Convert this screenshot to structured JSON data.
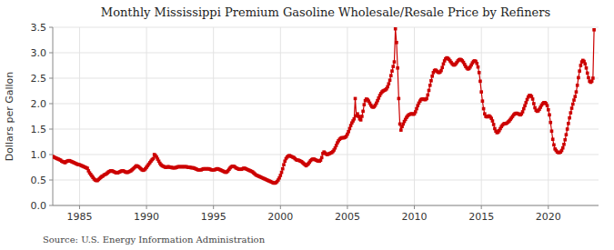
{
  "chart_data": {
    "type": "line",
    "title": "Monthly Mississippi Premium Gasoline Wholesale/Resale Price by Refiners",
    "y_label": "Dollars per Gallon",
    "annotations": [
      "Source: U.S. Energy Information Administration"
    ],
    "color": "#cc0000",
    "marker": "square",
    "grid": true,
    "xlim": [
      1983.0,
      2023.75
    ],
    "xticks": [
      1985,
      1990,
      1995,
      2000,
      2005,
      2010,
      2015,
      2020
    ],
    "ylim": [
      0.0,
      3.5
    ],
    "yticks": [
      {
        "value": 0.0,
        "label": "0.0"
      },
      0.5,
      {
        "value": 1.0,
        "label": "1.0"
      },
      1.5,
      {
        "value": 2.0,
        "label": "2.0"
      },
      2.5,
      {
        "value": 3.0,
        "label": "3.0"
      },
      3.5
    ],
    "x": [
      1983.0,
      1983.083,
      1983.167,
      1983.25,
      1983.333,
      1983.417,
      1983.5,
      1983.583,
      1983.667,
      1983.75,
      1983.833,
      1983.917,
      1984.0,
      1984.083,
      1984.167,
      1984.25,
      1984.333,
      1984.417,
      1984.5,
      1984.583,
      1984.667,
      1984.75,
      1984.833,
      1984.917,
      1985.0,
      1985.083,
      1985.167,
      1985.25,
      1985.333,
      1985.417,
      1985.5,
      1985.583,
      1985.667,
      1985.75,
      1985.833,
      1985.917,
      1986.0,
      1986.083,
      1986.167,
      1986.25,
      1986.333,
      1986.417,
      1986.5,
      1986.583,
      1986.667,
      1986.75,
      1986.833,
      1986.917,
      1987.0,
      1987.083,
      1987.167,
      1987.25,
      1987.333,
      1987.417,
      1987.5,
      1987.583,
      1987.667,
      1987.75,
      1987.833,
      1987.917,
      1988.0,
      1988.083,
      1988.167,
      1988.25,
      1988.333,
      1988.417,
      1988.5,
      1988.583,
      1988.667,
      1988.75,
      1988.833,
      1988.917,
      1989.0,
      1989.083,
      1989.167,
      1989.25,
      1989.333,
      1989.417,
      1989.5,
      1989.583,
      1989.667,
      1989.75,
      1989.833,
      1989.917,
      1990.0,
      1990.083,
      1990.167,
      1990.25,
      1990.333,
      1990.417,
      1990.5,
      1990.583,
      1990.667,
      1990.75,
      1990.833,
      1990.917,
      1991.0,
      1991.083,
      1991.167,
      1991.25,
      1991.333,
      1991.417,
      1991.5,
      1991.583,
      1991.667,
      1991.75,
      1991.833,
      1991.917,
      1992.0,
      1992.083,
      1992.167,
      1992.25,
      1992.333,
      1992.417,
      1992.5,
      1992.583,
      1992.667,
      1992.75,
      1992.833,
      1992.917,
      1993.0,
      1993.083,
      1993.167,
      1993.25,
      1993.333,
      1993.417,
      1993.5,
      1993.583,
      1993.667,
      1993.75,
      1993.833,
      1993.917,
      1994.0,
      1994.083,
      1994.167,
      1994.25,
      1994.333,
      1994.417,
      1994.5,
      1994.583,
      1994.667,
      1994.75,
      1994.833,
      1994.917,
      1995.0,
      1995.083,
      1995.167,
      1995.25,
      1995.333,
      1995.417,
      1995.5,
      1995.583,
      1995.667,
      1995.75,
      1995.833,
      1995.917,
      1996.0,
      1996.083,
      1996.167,
      1996.25,
      1996.333,
      1996.417,
      1996.5,
      1996.583,
      1996.667,
      1996.75,
      1996.833,
      1996.917,
      1997.0,
      1997.083,
      1997.167,
      1997.25,
      1997.333,
      1997.417,
      1997.5,
      1997.583,
      1997.667,
      1997.75,
      1997.833,
      1997.917,
      1998.0,
      1998.083,
      1998.167,
      1998.25,
      1998.333,
      1998.417,
      1998.5,
      1998.583,
      1998.667,
      1998.75,
      1998.833,
      1998.917,
      1999.0,
      1999.083,
      1999.167,
      1999.25,
      1999.333,
      1999.417,
      1999.5,
      1999.583,
      1999.667,
      1999.75,
      1999.833,
      1999.917,
      2000.0,
      2000.083,
      2000.167,
      2000.25,
      2000.333,
      2000.417,
      2000.5,
      2000.583,
      2000.667,
      2000.75,
      2000.833,
      2000.917,
      2001.0,
      2001.083,
      2001.167,
      2001.25,
      2001.333,
      2001.417,
      2001.5,
      2001.583,
      2001.667,
      2001.75,
      2001.833,
      2001.917,
      2002.0,
      2002.083,
      2002.167,
      2002.25,
      2002.333,
      2002.417,
      2002.5,
      2002.583,
      2002.667,
      2002.75,
      2002.833,
      2002.917,
      2003.0,
      2003.083,
      2003.167,
      2003.25,
      2003.333,
      2003.417,
      2003.5,
      2003.583,
      2003.667,
      2003.75,
      2003.833,
      2003.917,
      2004.0,
      2004.083,
      2004.167,
      2004.25,
      2004.333,
      2004.417,
      2004.5,
      2004.583,
      2004.667,
      2004.75,
      2004.833,
      2004.917,
      2005.0,
      2005.083,
      2005.167,
      2005.25,
      2005.333,
      2005.417,
      2005.5,
      2005.583,
      2005.667,
      2005.75,
      2005.833,
      2005.917,
      2006.0,
      2006.083,
      2006.167,
      2006.25,
      2006.333,
      2006.417,
      2006.5,
      2006.583,
      2006.667,
      2006.75,
      2006.833,
      2006.917,
      2007.0,
      2007.083,
      2007.167,
      2007.25,
      2007.333,
      2007.417,
      2007.5,
      2007.583,
      2007.667,
      2007.75,
      2007.833,
      2007.917,
      2008.0,
      2008.083,
      2008.167,
      2008.25,
      2008.333,
      2008.417,
      2008.5,
      2008.583,
      2008.667,
      2008.75,
      2008.833,
      2008.917,
      2009.0,
      2009.083,
      2009.167,
      2009.25,
      2009.333,
      2009.417,
      2009.5,
      2009.583,
      2009.667,
      2009.75,
      2009.833,
      2009.917,
      2010.0,
      2010.083,
      2010.167,
      2010.25,
      2010.333,
      2010.417,
      2010.5,
      2010.583,
      2010.667,
      2010.75,
      2010.833,
      2010.917,
      2011.0,
      2011.083,
      2011.167,
      2011.25,
      2011.333,
      2011.417,
      2011.5,
      2011.583,
      2011.667,
      2011.75,
      2011.833,
      2011.917,
      2012.0,
      2012.083,
      2012.167,
      2012.25,
      2012.333,
      2012.417,
      2012.5,
      2012.583,
      2012.667,
      2012.75,
      2012.833,
      2012.917,
      2013.0,
      2013.083,
      2013.167,
      2013.25,
      2013.333,
      2013.417,
      2013.5,
      2013.583,
      2013.667,
      2013.75,
      2013.833,
      2013.917,
      2014.0,
      2014.083,
      2014.167,
      2014.25,
      2014.333,
      2014.417,
      2014.5,
      2014.583,
      2014.667,
      2014.75,
      2014.833,
      2014.917,
      2015.0,
      2015.083,
      2015.167,
      2015.25,
      2015.333,
      2015.417,
      2015.5,
      2015.583,
      2015.667,
      2015.75,
      2015.833,
      2015.917,
      2016.0,
      2016.083,
      2016.167,
      2016.25,
      2016.333,
      2016.417,
      2016.5,
      2016.583,
      2016.667,
      2016.75,
      2016.833,
      2016.917,
      2017.0,
      2017.083,
      2017.167,
      2017.25,
      2017.333,
      2017.417,
      2017.5,
      2017.583,
      2017.667,
      2017.75,
      2017.833,
      2017.917,
      2018.0,
      2018.083,
      2018.167,
      2018.25,
      2018.333,
      2018.417,
      2018.5,
      2018.583,
      2018.667,
      2018.75,
      2018.833,
      2018.917,
      2019.0,
      2019.083,
      2019.167,
      2019.25,
      2019.333,
      2019.417,
      2019.5,
      2019.583,
      2019.667,
      2019.75,
      2019.833,
      2019.917,
      2020.0,
      2020.083,
      2020.167,
      2020.25,
      2020.333,
      2020.417,
      2020.5,
      2020.583,
      2020.667,
      2020.75,
      2020.833,
      2020.917,
      2021.0,
      2021.083,
      2021.167,
      2021.25,
      2021.333,
      2021.417,
      2021.5,
      2021.583,
      2021.667,
      2021.75,
      2021.833,
      2021.917,
      2022.0,
      2022.083,
      2022.167,
      2022.25,
      2022.333,
      2022.417,
      2022.5,
      2022.583,
      2022.667,
      2022.75,
      2022.833,
      2022.917,
      2023.0,
      2023.083,
      2023.167,
      2023.25,
      2023.333,
      2023.417
    ],
    "values": [
      0.963,
      0.95,
      0.94,
      0.93,
      0.92,
      0.91,
      0.9,
      0.89,
      0.87,
      0.86,
      0.85,
      0.84,
      0.86,
      0.87,
      0.88,
      0.88,
      0.87,
      0.86,
      0.85,
      0.84,
      0.83,
      0.82,
      0.81,
      0.8,
      0.8,
      0.79,
      0.78,
      0.77,
      0.76,
      0.75,
      0.74,
      0.73,
      0.68,
      0.64,
      0.61,
      0.58,
      0.55,
      0.52,
      0.5,
      0.49,
      0.49,
      0.51,
      0.53,
      0.55,
      0.57,
      0.58,
      0.6,
      0.61,
      0.62,
      0.64,
      0.66,
      0.67,
      0.68,
      0.68,
      0.67,
      0.66,
      0.65,
      0.64,
      0.64,
      0.65,
      0.66,
      0.67,
      0.68,
      0.68,
      0.67,
      0.66,
      0.65,
      0.65,
      0.66,
      0.67,
      0.68,
      0.7,
      0.72,
      0.74,
      0.76,
      0.78,
      0.77,
      0.76,
      0.74,
      0.72,
      0.7,
      0.69,
      0.7,
      0.72,
      0.75,
      0.78,
      0.81,
      0.84,
      0.87,
      0.9,
      0.92,
      1.0,
      0.98,
      0.95,
      0.91,
      0.87,
      0.83,
      0.8,
      0.78,
      0.77,
      0.76,
      0.75,
      0.75,
      0.76,
      0.76,
      0.75,
      0.75,
      0.74,
      0.74,
      0.74,
      0.74,
      0.75,
      0.76,
      0.76,
      0.76,
      0.76,
      0.76,
      0.76,
      0.76,
      0.76,
      0.76,
      0.75,
      0.75,
      0.75,
      0.74,
      0.74,
      0.74,
      0.73,
      0.72,
      0.71,
      0.7,
      0.7,
      0.7,
      0.7,
      0.71,
      0.72,
      0.72,
      0.72,
      0.72,
      0.72,
      0.72,
      0.71,
      0.7,
      0.7,
      0.7,
      0.7,
      0.71,
      0.72,
      0.72,
      0.71,
      0.7,
      0.69,
      0.68,
      0.67,
      0.66,
      0.65,
      0.66,
      0.68,
      0.71,
      0.74,
      0.76,
      0.77,
      0.77,
      0.76,
      0.74,
      0.73,
      0.72,
      0.71,
      0.71,
      0.71,
      0.72,
      0.73,
      0.73,
      0.72,
      0.71,
      0.7,
      0.69,
      0.68,
      0.67,
      0.66,
      0.64,
      0.62,
      0.6,
      0.59,
      0.58,
      0.57,
      0.56,
      0.55,
      0.54,
      0.53,
      0.52,
      0.51,
      0.5,
      0.49,
      0.48,
      0.47,
      0.46,
      0.45,
      0.44,
      0.44,
      0.45,
      0.47,
      0.5,
      0.54,
      0.59,
      0.65,
      0.72,
      0.8,
      0.87,
      0.92,
      0.95,
      0.97,
      0.98,
      0.97,
      0.96,
      0.95,
      0.94,
      0.92,
      0.9,
      0.89,
      0.89,
      0.88,
      0.87,
      0.86,
      0.84,
      0.82,
      0.8,
      0.78,
      0.8,
      0.82,
      0.85,
      0.88,
      0.9,
      0.91,
      0.91,
      0.9,
      0.89,
      0.88,
      0.87,
      0.87,
      0.89,
      0.94,
      1.02,
      1.05,
      1.03,
      1.01,
      1.0,
      1.01,
      1.02,
      1.03,
      1.04,
      1.06,
      1.09,
      1.13,
      1.18,
      1.23,
      1.27,
      1.3,
      1.32,
      1.33,
      1.33,
      1.33,
      1.34,
      1.36,
      1.4,
      1.45,
      1.51,
      1.57,
      1.62,
      1.66,
      1.7,
      2.1,
      1.76,
      1.8,
      1.75,
      1.7,
      1.68,
      1.75,
      1.85,
      1.98,
      2.06,
      2.09,
      2.08,
      2.05,
      2.01,
      1.97,
      1.94,
      1.93,
      1.94,
      1.97,
      2.01,
      2.06,
      2.11,
      2.16,
      2.2,
      2.23,
      2.25,
      2.26,
      2.27,
      2.29,
      2.33,
      2.39,
      2.46,
      2.55,
      2.64,
      2.73,
      2.82,
      3.47,
      3.2,
      2.7,
      2.1,
      1.6,
      1.48,
      1.55,
      1.6,
      1.65,
      1.69,
      1.73,
      1.76,
      1.78,
      1.79,
      1.8,
      1.8,
      1.79,
      1.8,
      1.84,
      1.9,
      1.96,
      2.01,
      2.05,
      2.08,
      2.09,
      2.09,
      2.08,
      2.08,
      2.1,
      2.17,
      2.26,
      2.36,
      2.45,
      2.54,
      2.61,
      2.65,
      2.66,
      2.64,
      2.62,
      2.61,
      2.62,
      2.65,
      2.71,
      2.78,
      2.84,
      2.88,
      2.9,
      2.89,
      2.87,
      2.84,
      2.81,
      2.78,
      2.76,
      2.76,
      2.78,
      2.81,
      2.84,
      2.86,
      2.87,
      2.86,
      2.84,
      2.81,
      2.77,
      2.73,
      2.7,
      2.68,
      2.69,
      2.72,
      2.76,
      2.8,
      2.83,
      2.84,
      2.83,
      2.79,
      2.72,
      2.61,
      2.44,
      2.23,
      2.05,
      1.9,
      1.8,
      1.75,
      1.74,
      1.75,
      1.76,
      1.74,
      1.71,
      1.66,
      1.59,
      1.51,
      1.46,
      1.43,
      1.44,
      1.47,
      1.51,
      1.55,
      1.58,
      1.6,
      1.61,
      1.61,
      1.62,
      1.64,
      1.66,
      1.69,
      1.72,
      1.75,
      1.78,
      1.8,
      1.81,
      1.81,
      1.8,
      1.79,
      1.78,
      1.8,
      1.84,
      1.9,
      1.96,
      2.02,
      2.08,
      2.13,
      2.16,
      2.16,
      2.14,
      2.09,
      2.0,
      1.92,
      1.87,
      1.85,
      1.86,
      1.89,
      1.93,
      1.97,
      2.0,
      2.02,
      2.02,
      2.0,
      1.96,
      1.88,
      1.78,
      1.63,
      1.46,
      1.3,
      1.19,
      1.11,
      1.08,
      1.05,
      1.04,
      1.04,
      1.05,
      1.08,
      1.13,
      1.2,
      1.29,
      1.39,
      1.5,
      1.61,
      1.72,
      1.82,
      1.91,
      1.99,
      2.07,
      2.14,
      2.23,
      2.36,
      2.51,
      2.64,
      2.75,
      2.82,
      2.85,
      2.83,
      2.78,
      2.7,
      2.6,
      2.51,
      2.44,
      2.42,
      2.44,
      2.5,
      3.45
    ]
  }
}
